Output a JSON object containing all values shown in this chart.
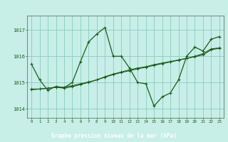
{
  "title": "Graphe pression niveau de la mer (hPa)",
  "bg_color": "#c8eee8",
  "plot_bg_color": "#c8eee8",
  "label_bg_color": "#2d6b2d",
  "label_text_color": "#ffffff",
  "line_color": "#1a5c1a",
  "grid_color": "#88ccbb",
  "xlim": [
    -0.5,
    23.5
  ],
  "ylim": [
    1013.65,
    1017.55
  ],
  "yticks": [
    1014,
    1015,
    1016,
    1017
  ],
  "xticks": [
    0,
    1,
    2,
    3,
    4,
    5,
    6,
    7,
    8,
    9,
    10,
    11,
    12,
    13,
    14,
    15,
    16,
    17,
    18,
    19,
    20,
    21,
    22,
    23
  ],
  "series": [
    [
      1015.7,
      1015.1,
      1014.7,
      1014.85,
      1014.8,
      1015.0,
      1015.8,
      1016.55,
      1016.85,
      1017.1,
      1016.0,
      1016.0,
      1015.55,
      1015.0,
      1014.95,
      1014.1,
      1014.45,
      1014.6,
      1015.1,
      1016.0,
      1016.35,
      1016.2,
      1016.65,
      1016.75
    ],
    [
      1014.75,
      1014.75,
      1014.78,
      1014.82,
      1014.82,
      1014.88,
      1014.95,
      1015.02,
      1015.1,
      1015.2,
      1015.3,
      1015.38,
      1015.45,
      1015.52,
      1015.58,
      1015.65,
      1015.72,
      1015.78,
      1015.85,
      1015.92,
      1015.98,
      1016.05,
      1016.25,
      1016.3
    ],
    [
      1014.72,
      1014.75,
      1014.78,
      1014.82,
      1014.78,
      1014.84,
      1014.92,
      1015.0,
      1015.1,
      1015.22,
      1015.32,
      1015.4,
      1015.48,
      1015.55,
      1015.6,
      1015.68,
      1015.74,
      1015.8,
      1015.86,
      1015.92,
      1016.0,
      1016.1,
      1016.28,
      1016.32
    ]
  ]
}
